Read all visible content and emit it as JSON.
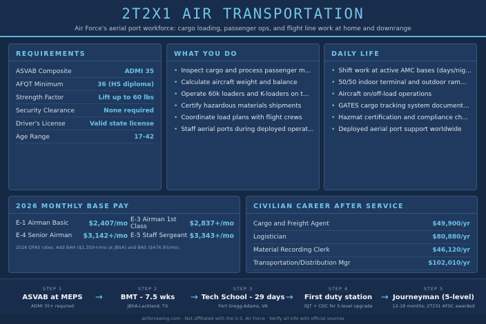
{
  "header": {
    "title": "2T2X1 AIR TRANSPORTATION",
    "subtitle": "Air Force's aerial port workforce: cargo loading, passenger ops, and flight line work at home and downrange"
  },
  "requirements": {
    "title": "REQUIREMENTS",
    "rows": [
      {
        "label": "ASVAB Composite",
        "value": "ADMI 35"
      },
      {
        "label": "AFQT Minimum",
        "value": "36 (HS diploma)"
      },
      {
        "label": "Strength Factor",
        "value": "Lift up to 60 lbs"
      },
      {
        "label": "Security Clearance",
        "value": "None required"
      },
      {
        "label": "Driver's License",
        "value": "Valid state license"
      },
      {
        "label": "Age Range",
        "value": "17-42"
      }
    ]
  },
  "what_you_do": {
    "title": "WHAT YOU DO",
    "items": [
      "Inspect cargo and process passenger m...",
      "Calculate aircraft weight and balance",
      "Operate 60k loaders and K-loaders on t...",
      "Certify hazardous materials shipments",
      "Coordinate load plans with flight crews",
      "Staff aerial ports during deployed operat..."
    ]
  },
  "daily_life": {
    "title": "DAILY LIFE",
    "items": [
      "Shift work at active AMC bases (days/nig...",
      "50/50 indoor terminal and outdoor ram...",
      "Aircraft on/off-load operations",
      "GATES cargo tracking system document...",
      "Hazmat certification and compliance ch...",
      "Deployed aerial port support worldwide"
    ]
  },
  "pay": {
    "title": "2026 MONTHLY BASE PAY",
    "rows": [
      {
        "label": "E-1 Airman Basic",
        "value": "$2,407/mo"
      },
      {
        "label": "E-3 Airman 1st Class",
        "value": "$2,837+/mo"
      },
      {
        "label": "E-4 Senior Airman",
        "value": "$3,142+/mo"
      },
      {
        "label": "E-5 Staff Sergeant",
        "value": "$3,343+/mo"
      }
    ],
    "note": "2026 DFAS rates. Add BAH ($1,359+/mo at JBSA) and BAS ($476.95/mo)."
  },
  "civilian": {
    "title": "CIVILIAN CAREER AFTER SERVICE",
    "rows": [
      {
        "label": "Cargo and Freight Agent",
        "value": "$49,900/yr"
      },
      {
        "label": "Logistician",
        "value": "$80,880/yr"
      },
      {
        "label": "Material Recording Clerk",
        "value": "$46,120/yr"
      },
      {
        "label": "Transportation/Distribution Mgr",
        "value": "$102,010/yr"
      }
    ]
  },
  "steps": [
    {
      "num": "STEP 1",
      "name": "ASVAB at MEPS",
      "sub": "ADMI 35+ required"
    },
    {
      "num": "STEP 2",
      "name": "BMT - 7.5 wks",
      "sub": "JBSA-Lackland, TX"
    },
    {
      "num": "STEP 3",
      "name": "Tech School - 29 days",
      "sub": "Fort Gregg-Adams, VA"
    },
    {
      "num": "STEP 4",
      "name": "First duty station",
      "sub": "OJT + CDC for 5-level upgrade"
    },
    {
      "num": "STEP 5",
      "name": "Journeyman (5-level)",
      "sub": "12-18 months; 2T231 AFSC awarded"
    }
  ],
  "arrow_glyph": "→",
  "bullet_glyph": "•",
  "footer": "airforcewing.com · Not affiliated with the U.S. Air Force · Verify all info with official sources",
  "colors": {
    "accent": "#72c4ec",
    "background": "#152844",
    "panel": "#1f3a5e"
  }
}
